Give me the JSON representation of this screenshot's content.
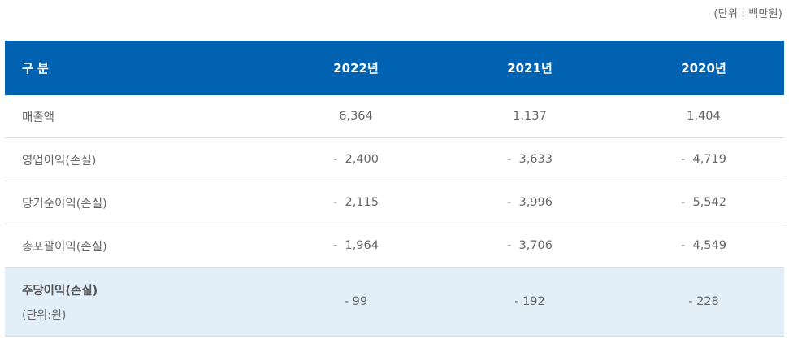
{
  "unit_note": "(단위 : 백만원)",
  "header": {
    "category": "구 분",
    "years": [
      "2022년",
      "2021년",
      "2020년"
    ]
  },
  "rows": [
    {
      "label": "매출액",
      "values": [
        "6,364",
        "1,137",
        "1,404"
      ]
    },
    {
      "label": "영업이익(손실)",
      "values": [
        "-  2,400",
        "-  3,633",
        "-  4,719"
      ]
    },
    {
      "label": "당기순이익(손실)",
      "values": [
        "-  2,115",
        "-  3,996",
        "-  5,542"
      ]
    },
    {
      "label": "총포괄이익(손실)",
      "values": [
        "-  1,964",
        "-  3,706",
        "-  4,549"
      ]
    }
  ],
  "eps": {
    "label": "주당이익(손실)",
    "sublabel": "(단위:원)",
    "values": [
      "- 99",
      "- 192",
      "- 228"
    ]
  },
  "colors": {
    "header_bg": "#0062b0",
    "eps_bg": "#e2eef8"
  }
}
